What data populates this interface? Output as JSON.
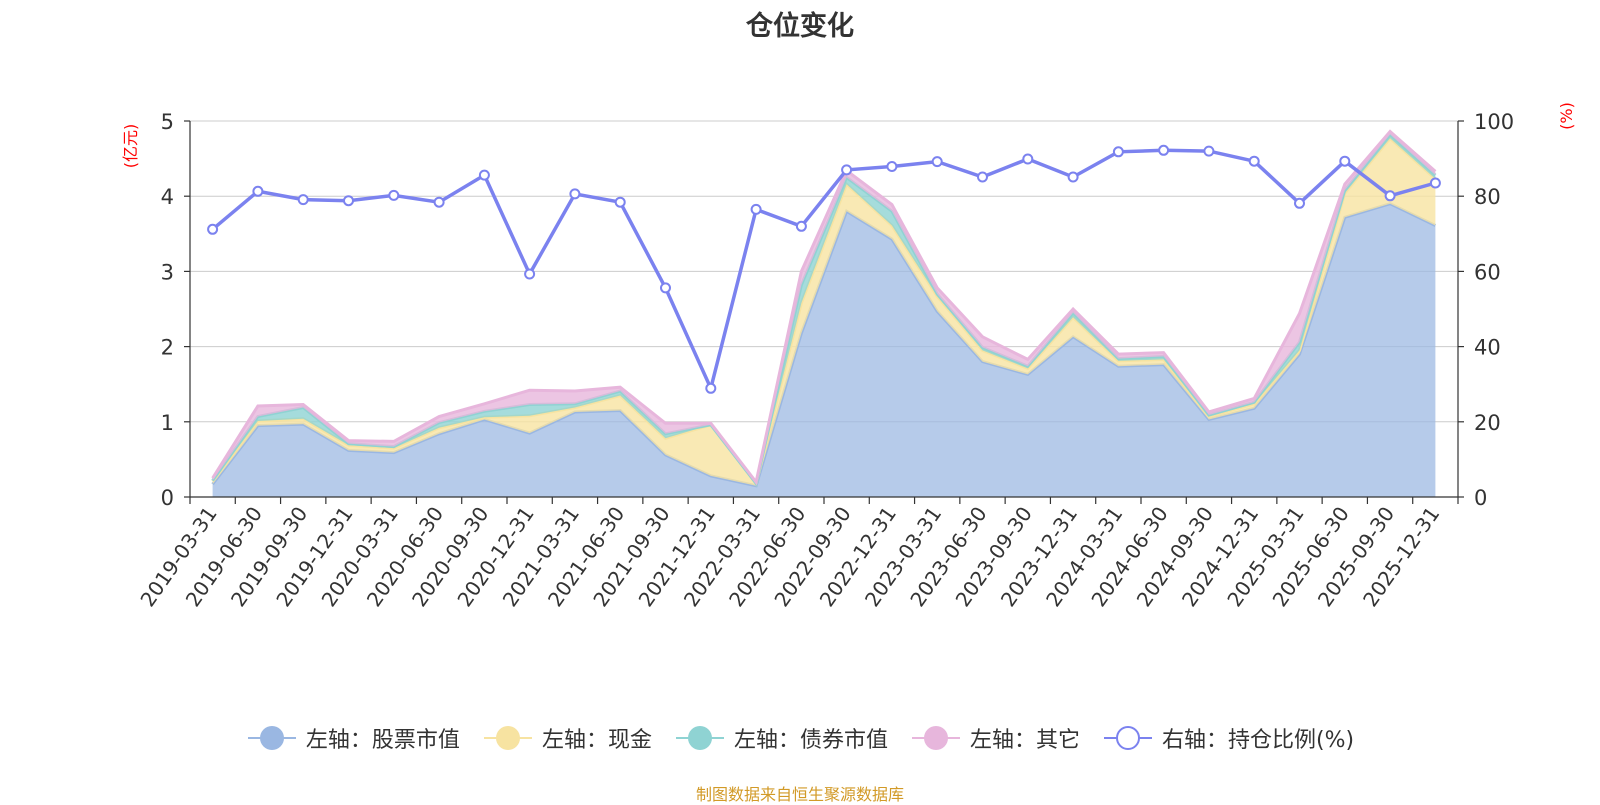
{
  "title": "仓位变化",
  "source_note": "制图数据来自恒生聚源数据库",
  "colors": {
    "stock": "#9ab7e2",
    "cash": "#f7e3a1",
    "bond": "#8fd3d3",
    "other": "#e7b6dc",
    "ratio": "#7b82ef"
  },
  "legend": [
    {
      "label": "左轴：股票市值",
      "key": "stock",
      "kind": "area"
    },
    {
      "label": "左轴：现金",
      "key": "cash",
      "kind": "area"
    },
    {
      "label": "左轴：债券市值",
      "key": "bond",
      "kind": "area"
    },
    {
      "label": "左轴：其它",
      "key": "other",
      "kind": "area"
    },
    {
      "label": "右轴：持仓比例(%)",
      "key": "ratio",
      "kind": "line"
    }
  ],
  "chart_data": {
    "type": "area",
    "title": "仓位变化",
    "ylabel_left": "(亿元)",
    "ylabel_right": "(%)",
    "ylim_left": [
      0,
      5
    ],
    "ylim_right": [
      0,
      100
    ],
    "yticks_left": [
      0,
      1,
      2,
      3,
      4,
      5
    ],
    "yticks_right": [
      0,
      20,
      40,
      60,
      80,
      100
    ],
    "grid": true,
    "legend_position": "bottom",
    "categories": [
      "2019-03-31",
      "2019-06-30",
      "2019-09-30",
      "2019-12-31",
      "2020-03-31",
      "2020-06-30",
      "2020-09-30",
      "2020-12-31",
      "2021-03-31",
      "2021-06-30",
      "2021-09-30",
      "2021-12-31",
      "2022-03-31",
      "2022-06-30",
      "2022-09-30",
      "2022-12-31",
      "2023-03-31",
      "2023-06-30",
      "2023-09-30",
      "2023-12-31",
      "2024-03-31",
      "2024-06-30",
      "2024-09-30",
      "2024-12-31",
      "2025-03-31",
      "2025-06-30",
      "2025-09-30",
      "2025-12-31"
    ],
    "series": [
      {
        "name": "左轴：股票市值",
        "axis": "left",
        "stacked": true,
        "values": [
          0.17,
          0.95,
          0.97,
          0.62,
          0.59,
          0.84,
          1.03,
          0.85,
          1.13,
          1.15,
          0.56,
          0.28,
          0.15,
          2.18,
          3.8,
          3.43,
          2.47,
          1.8,
          1.63,
          2.13,
          1.74,
          1.76,
          1.03,
          1.18,
          1.9,
          3.72,
          3.9,
          3.61
        ]
      },
      {
        "name": "左轴：现金",
        "axis": "left",
        "stacked": true,
        "values": [
          0.04,
          0.06,
          0.07,
          0.07,
          0.06,
          0.08,
          0.03,
          0.23,
          0.06,
          0.2,
          0.22,
          0.68,
          0.03,
          0.4,
          0.36,
          0.18,
          0.2,
          0.15,
          0.08,
          0.26,
          0.07,
          0.07,
          0.04,
          0.06,
          0.05,
          0.32,
          0.87,
          0.62
        ]
      },
      {
        "name": "左轴：债券市值",
        "axis": "left",
        "stacked": true,
        "values": [
          0.01,
          0.06,
          0.15,
          0.02,
          0.02,
          0.07,
          0.08,
          0.15,
          0.05,
          0.06,
          0.06,
          0.0,
          0.0,
          0.24,
          0.09,
          0.19,
          0.03,
          0.04,
          0.03,
          0.06,
          0.03,
          0.04,
          0.02,
          0.02,
          0.11,
          0.04,
          0.05,
          0.05
        ]
      },
      {
        "name": "左轴：其它",
        "axis": "left",
        "stacked": true,
        "values": [
          0.03,
          0.14,
          0.04,
          0.04,
          0.07,
          0.08,
          0.1,
          0.19,
          0.17,
          0.05,
          0.14,
          0.02,
          0.02,
          0.18,
          0.09,
          0.09,
          0.08,
          0.14,
          0.09,
          0.05,
          0.06,
          0.05,
          0.04,
          0.05,
          0.38,
          0.08,
          0.04,
          0.05
        ]
      },
      {
        "name": "右轴：持仓比例(%)",
        "axis": "right",
        "type": "line",
        "values": [
          71.2,
          81.3,
          79.1,
          78.8,
          80.2,
          78.4,
          85.6,
          59.3,
          80.6,
          78.4,
          55.6,
          28.9,
          76.5,
          72.0,
          87.0,
          87.9,
          89.2,
          85.1,
          89.9,
          85.1,
          91.8,
          92.2,
          92.0,
          89.3,
          78.1,
          89.3,
          80.1,
          83.5
        ]
      }
    ]
  }
}
